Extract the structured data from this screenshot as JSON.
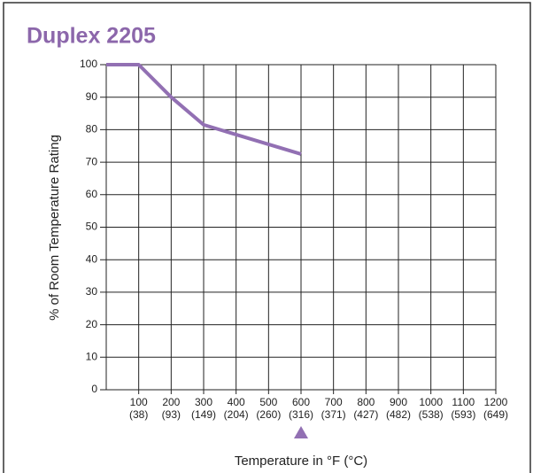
{
  "chart_data": {
    "type": "line",
    "title": "Duplex 2205",
    "x_label": "Temperature in °F (°C)",
    "y_label": "% of Room Temperature Rating",
    "x": [
      0,
      100,
      200,
      300,
      400,
      500,
      600
    ],
    "series": [
      {
        "name": "Duplex 2205",
        "color": "#9270b3",
        "values": [
          100,
          100,
          90,
          81.5,
          78.5,
          75.5,
          72.5
        ]
      }
    ],
    "xlim": [
      0,
      1200
    ],
    "xticks": [
      100,
      200,
      300,
      400,
      500,
      600,
      700,
      800,
      900,
      1000,
      1100,
      1200
    ],
    "xtick_sublabels": [
      "(38)",
      "(93)",
      "(149)",
      "(204)",
      "(260)",
      "(316)",
      "(371)",
      "(427)",
      "(482)",
      "(538)",
      "(593)",
      "(649)"
    ],
    "ylim": [
      0,
      100
    ],
    "yticks": [
      0,
      10,
      20,
      30,
      40,
      50,
      60,
      70,
      80,
      90,
      100
    ],
    "marker_x": 600,
    "marker_color": "#9270b3",
    "grid": true
  }
}
